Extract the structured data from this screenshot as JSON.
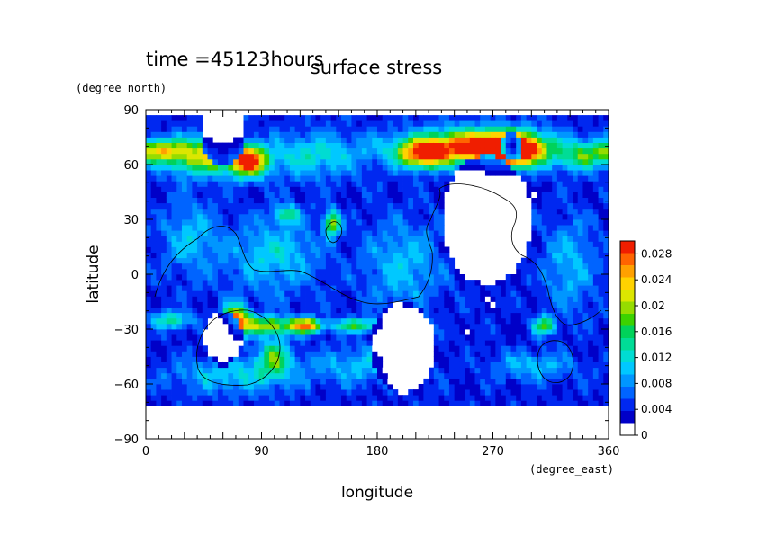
{
  "header": {
    "time_label": "time =45123hours",
    "title": "surface stress"
  },
  "chart_data": {
    "type": "heatmap",
    "title": "surface stress",
    "subtitle": "time =45123hours",
    "xlabel": "longitude",
    "ylabel": "latitude",
    "x_unit": "(degree_east)",
    "y_unit": "(degree_north)",
    "xlim": [
      0,
      360
    ],
    "ylim": [
      -90,
      90
    ],
    "x_ticks": [
      0,
      90,
      180,
      270,
      360
    ],
    "y_ticks": [
      90,
      60,
      30,
      0,
      -30,
      -60,
      -90
    ],
    "x_tick_labels": [
      "0",
      "90",
      "180",
      "270",
      "360"
    ],
    "y_tick_labels": [
      "90",
      "60",
      "30",
      "0",
      "−30",
      "−60",
      "−90"
    ],
    "data_extent_lat": [
      -72,
      85
    ],
    "colorbar": {
      "min": 0,
      "max": 0.03,
      "labels": [
        "0",
        "0.004",
        "0.008",
        "0.012",
        "0.016",
        "0.02",
        "0.024",
        "0.028"
      ],
      "label_values": [
        0,
        0.004,
        0.008,
        0.012,
        0.016,
        0.02,
        0.024,
        0.028
      ],
      "colors": [
        "#ffffff",
        "#0000c8",
        "#0028f0",
        "#0064ff",
        "#0096ff",
        "#00c8ff",
        "#00dcd2",
        "#00dc96",
        "#00d25a",
        "#3cd200",
        "#96dc00",
        "#dce600",
        "#ffd200",
        "#ffa000",
        "#ff6400",
        "#f01e00"
      ]
    },
    "features": [
      {
        "lon": 45,
        "lat": 65,
        "sx": 30,
        "sy": 10,
        "value": 0.018
      },
      {
        "lon": 80,
        "lat": 62,
        "sx": 14,
        "sy": 8,
        "value": 0.024
      },
      {
        "lon": 10,
        "lat": 68,
        "sx": 18,
        "sy": 6,
        "value": 0.014
      },
      {
        "lon": 130,
        "lat": 65,
        "sx": 40,
        "sy": 12,
        "value": 0.008
      },
      {
        "lon": 250,
        "lat": 70,
        "sx": 50,
        "sy": 9,
        "value": 0.024
      },
      {
        "lon": 285,
        "lat": 68,
        "sx": 25,
        "sy": 9,
        "value": 0.028
      },
      {
        "lon": 215,
        "lat": 65,
        "sx": 18,
        "sy": 7,
        "value": 0.018
      },
      {
        "lon": 340,
        "lat": 65,
        "sx": 20,
        "sy": 8,
        "value": 0.012
      },
      {
        "lon": 145,
        "lat": 28,
        "sx": 6,
        "sy": 7,
        "value": 0.016
      },
      {
        "lon": 110,
        "lat": 33,
        "sx": 10,
        "sy": 5,
        "value": 0.01
      },
      {
        "lon": 100,
        "lat": 10,
        "sx": 35,
        "sy": 20,
        "value": 0.007
      },
      {
        "lon": 200,
        "lat": 5,
        "sx": 30,
        "sy": 25,
        "value": 0.006
      },
      {
        "lon": 35,
        "lat": 20,
        "sx": 22,
        "sy": 20,
        "value": 0.006
      },
      {
        "lon": 330,
        "lat": 5,
        "sx": 20,
        "sy": 25,
        "value": 0.006
      },
      {
        "lon": 70,
        "lat": -25,
        "sx": 10,
        "sy": 8,
        "value": 0.024
      },
      {
        "lon": 125,
        "lat": -28,
        "sx": 12,
        "sy": 4,
        "value": 0.022
      },
      {
        "lon": 95,
        "lat": -28,
        "sx": 20,
        "sy": 5,
        "value": 0.016
      },
      {
        "lon": 165,
        "lat": -28,
        "sx": 20,
        "sy": 4,
        "value": 0.012
      },
      {
        "lon": 20,
        "lat": -25,
        "sx": 15,
        "sy": 5,
        "value": 0.01
      },
      {
        "lon": 310,
        "lat": -28,
        "sx": 8,
        "sy": 5,
        "value": 0.014
      },
      {
        "lon": 100,
        "lat": -45,
        "sx": 12,
        "sy": 10,
        "value": 0.012
      },
      {
        "lon": 70,
        "lat": -55,
        "sx": 50,
        "sy": 10,
        "value": 0.007
      },
      {
        "lon": 170,
        "lat": -50,
        "sx": 40,
        "sy": 10,
        "value": 0.006
      },
      {
        "lon": 300,
        "lat": -50,
        "sx": 30,
        "sy": 8,
        "value": 0.006
      }
    ],
    "holes": [
      {
        "lon": 60,
        "lat": -35,
        "r": 15,
        "value": 0
      },
      {
        "lon": 265,
        "lat": 30,
        "r": 35,
        "value": 0
      },
      {
        "lon": 200,
        "lat": -40,
        "r": 25,
        "value": 0
      },
      {
        "lon": 285,
        "lat": 70,
        "r": 8,
        "value": 0
      },
      {
        "lon": 60,
        "lat": 78,
        "r": 18,
        "value": 0
      }
    ],
    "grid": false,
    "legend": "colorbar-right"
  }
}
